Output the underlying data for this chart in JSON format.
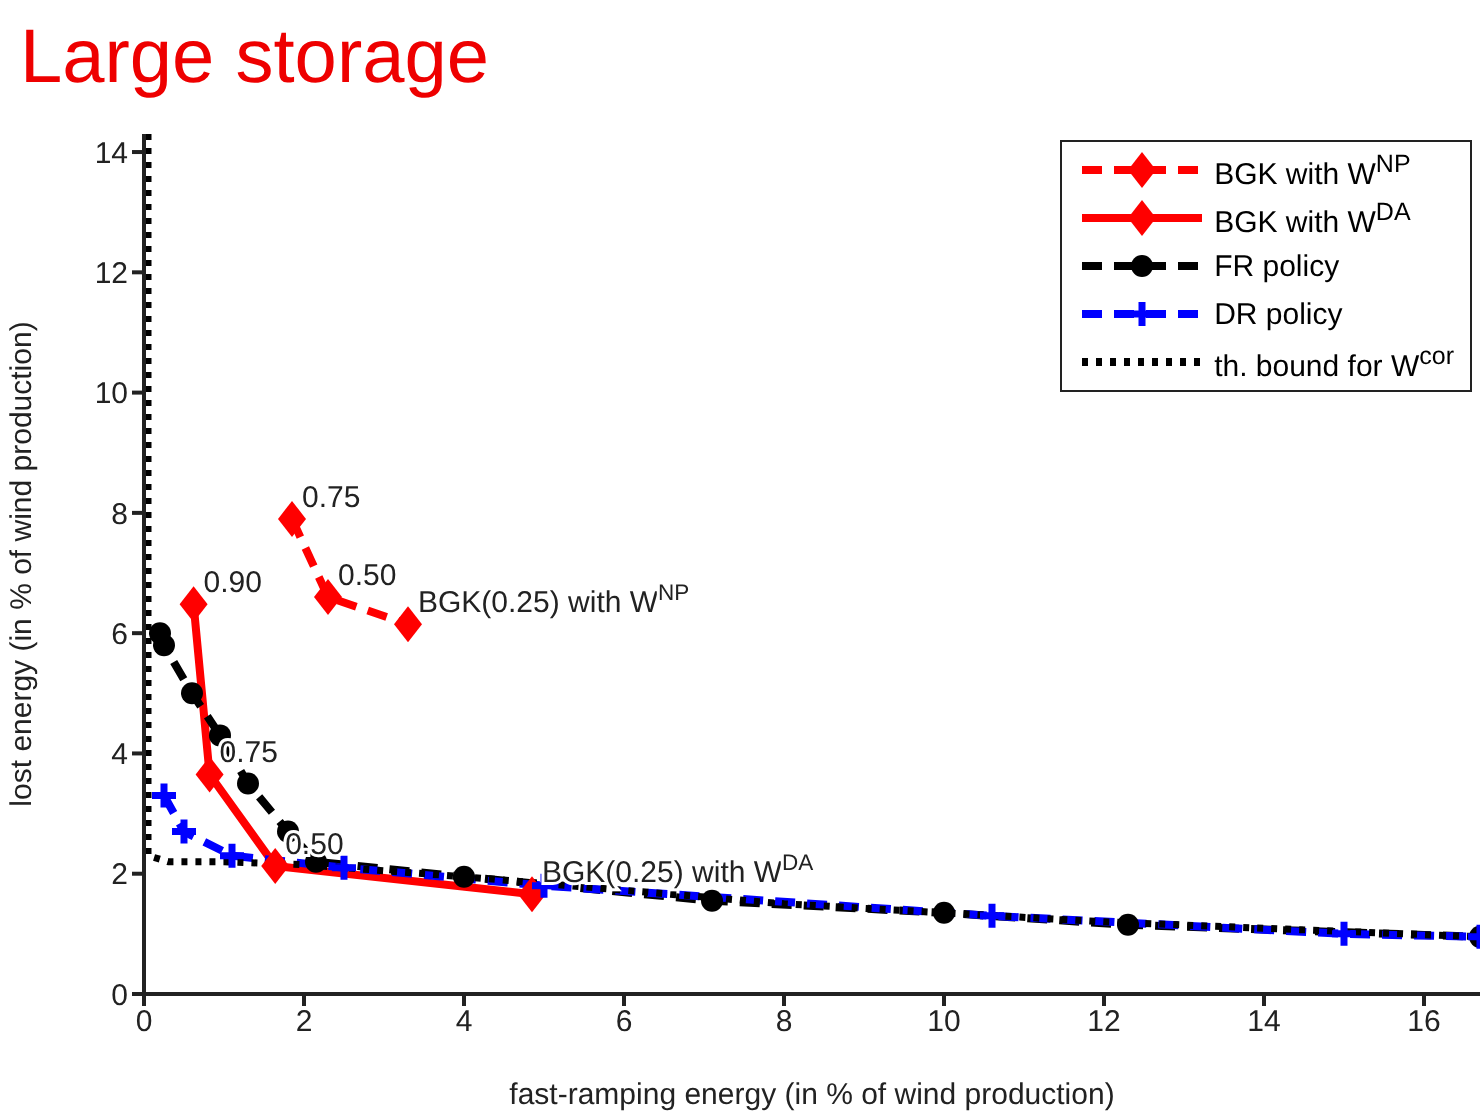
{
  "chart_data": {
    "type": "line",
    "title": "Large storage",
    "xlabel": "fast-ramping energy (in % of wind production)",
    "ylabel": "lost energy (in % of wind production)",
    "xlim": [
      0,
      16.7
    ],
    "ylim": [
      0,
      14.3
    ],
    "xticks": [
      0,
      2,
      4,
      6,
      8,
      10,
      12,
      14,
      16
    ],
    "yticks": [
      0,
      2,
      4,
      6,
      8,
      10,
      12,
      14
    ],
    "grid": false,
    "legend": "top right",
    "series": [
      {
        "name": "BGK with W$^{NP}$",
        "color": "#ff0000",
        "marker": "diamond",
        "line_style": "dashed",
        "x": [
          1.85,
          2.3,
          3.3
        ],
        "values": [
          7.9,
          6.6,
          6.15
        ]
      },
      {
        "name": "BGK with W$^{DA}$",
        "color": "#ff0000",
        "marker": "diamond",
        "line_style": "solid",
        "x": [
          0.62,
          0.82,
          1.64,
          4.85
        ],
        "values": [
          6.48,
          3.65,
          2.13,
          1.66
        ]
      },
      {
        "name": "FR policy",
        "color": "#000000",
        "marker": "circle",
        "line_style": "dashed",
        "x": [
          0.2,
          0.25,
          0.6,
          0.95,
          1.3,
          1.8,
          2.15,
          4,
          7.1,
          10,
          12.3,
          16.7
        ],
        "values": [
          6.0,
          5.8,
          5.0,
          4.3,
          3.5,
          2.7,
          2.2,
          1.95,
          1.55,
          1.35,
          1.15,
          0.95
        ]
      },
      {
        "name": "DR policy",
        "color": "#0000ff",
        "marker": "cross",
        "line_style": "dashed",
        "x": [
          0.25,
          0.5,
          1.1,
          2.5,
          5,
          10.6,
          15,
          16.7
        ],
        "values": [
          3.3,
          2.7,
          2.3,
          2.1,
          1.8,
          1.3,
          1.0,
          0.95
        ]
      },
      {
        "name": "th. bound for W$^{cor}$",
        "color": "#000000",
        "marker": "none",
        "line_style": "dotted",
        "x": [
          0.05,
          0.05,
          0.3,
          1,
          2,
          4,
          8,
          12,
          16.7
        ],
        "values": [
          14.3,
          2.3,
          2.2,
          2.2,
          2.15,
          1.95,
          1.5,
          1.2,
          0.95
        ]
      }
    ],
    "annotations": [
      {
        "text": "0.75",
        "x": 1.85,
        "y": 7.9
      },
      {
        "text": "0.50",
        "x": 2.3,
        "y": 6.6
      },
      {
        "text": "BGK(0.25) with W$^{NP}$",
        "x": 3.3,
        "y": 6.15
      },
      {
        "text": "0.90",
        "x": 0.62,
        "y": 6.48
      },
      {
        "text": "0.75",
        "x": 0.82,
        "y": 3.65
      },
      {
        "text": "0.50",
        "x": 1.64,
        "y": 2.13
      },
      {
        "text": "BGK(0.25) with W$^{DA}$",
        "x": 4.85,
        "y": 1.66
      }
    ]
  }
}
